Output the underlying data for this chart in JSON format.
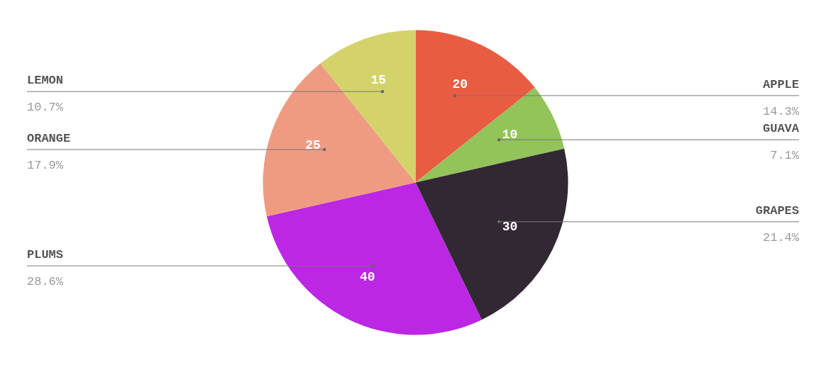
{
  "chart_data": {
    "type": "pie",
    "categories": [
      "APPLE",
      "GUAVA",
      "GRAPES",
      "PLUMS",
      "ORANGE",
      "LEMON"
    ],
    "values": [
      20,
      10,
      30,
      40,
      25,
      15
    ],
    "colors": [
      "#e85c41",
      "#93c45a",
      "#322834",
      "#bb27e2",
      "#ef9b82",
      "#d4d36b"
    ],
    "data_labels": true,
    "annotations": [
      "14.3%",
      "7.1%",
      "21.4%",
      "28.6%",
      "17.9%",
      "10.7%"
    ]
  }
}
